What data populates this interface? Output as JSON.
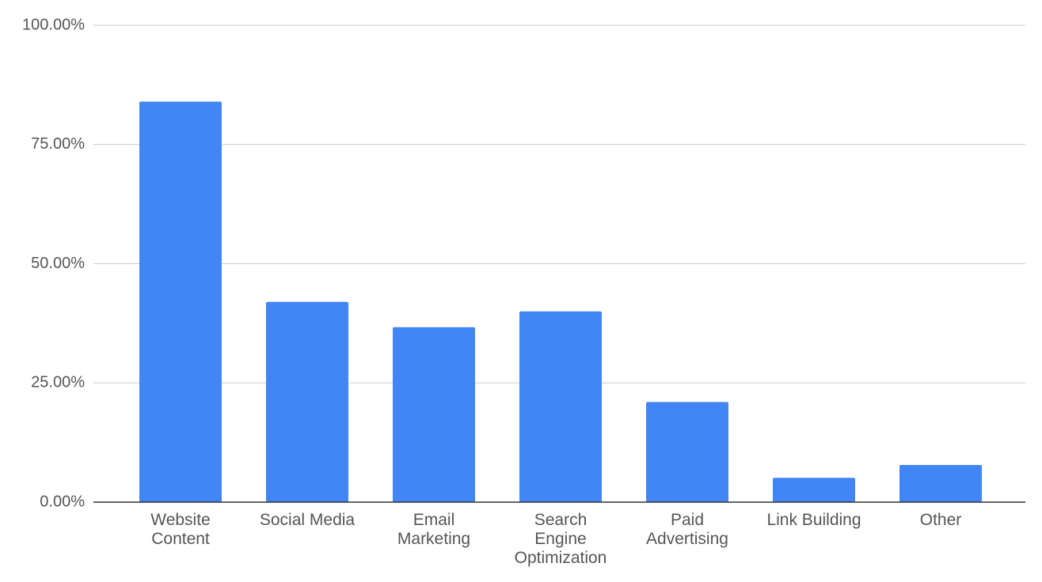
{
  "chart_data": {
    "type": "bar",
    "categories": [
      "Website Content",
      "Social Media",
      "Email Marketing",
      "Search Engine Optimization",
      "Paid Advertising",
      "Link Building",
      "Other"
    ],
    "values": [
      84,
      42,
      36.7,
      40,
      21,
      5.1,
      7.8
    ],
    "color": "#4285f4",
    "ylim": [
      0,
      100
    ],
    "yticks": [
      {
        "value": 0,
        "label": "0.00%"
      },
      {
        "value": 25,
        "label": "25.00%"
      },
      {
        "value": 50,
        "label": "50.00%"
      },
      {
        "value": 75,
        "label": "75.00%"
      },
      {
        "value": 100,
        "label": "100.00%"
      }
    ],
    "grid": true
  }
}
